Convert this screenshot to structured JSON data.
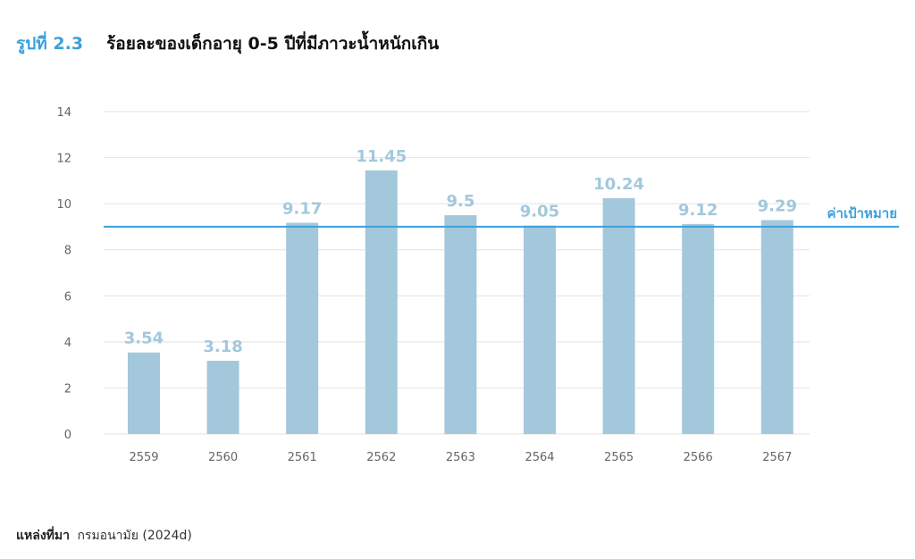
{
  "figure": {
    "label": "รูปที่ 2.3",
    "title": "ร้อยละของเด็กอายุ 0-5 ปีที่มีภาวะน้ำหนักเกิน"
  },
  "source": {
    "label": "แหล่งที่มา",
    "text": "กรมอนามัย (2024d)"
  },
  "colors": {
    "bar": "#a3c8dc",
    "data_label": "#a3c8dc",
    "target_line": "#3aa0dc",
    "figure_label": "#3aa0dc",
    "grid": "#e2e2e2",
    "tick_text": "#666666"
  },
  "chart_data": {
    "type": "bar",
    "categories": [
      "2559",
      "2560",
      "2561",
      "2562",
      "2563",
      "2564",
      "2565",
      "2566",
      "2567"
    ],
    "values": [
      3.54,
      3.18,
      9.17,
      11.45,
      9.5,
      9.05,
      10.24,
      9.12,
      9.29
    ],
    "data_labels": [
      "3.54",
      "3.18",
      "9.17",
      "11.45",
      "9.5",
      "9.05",
      "10.24",
      "9.12",
      "9.29"
    ],
    "ylim": [
      0,
      14
    ],
    "yticks": [
      0,
      2,
      4,
      6,
      8,
      10,
      12,
      14
    ],
    "grid": true,
    "reference_line": {
      "value": 9,
      "label": "ค่าเป้าหมาย"
    }
  }
}
